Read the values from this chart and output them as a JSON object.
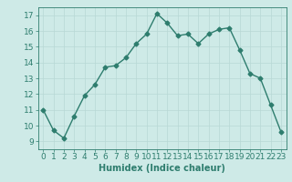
{
  "x": [
    0,
    1,
    2,
    3,
    4,
    5,
    6,
    7,
    8,
    9,
    10,
    11,
    12,
    13,
    14,
    15,
    16,
    17,
    18,
    19,
    20,
    21,
    22,
    23
  ],
  "y": [
    11.0,
    9.7,
    9.2,
    10.6,
    11.9,
    12.6,
    13.7,
    13.8,
    14.3,
    15.2,
    15.8,
    17.1,
    16.5,
    15.7,
    15.8,
    15.2,
    15.8,
    16.1,
    16.2,
    14.8,
    13.3,
    13.0,
    11.3,
    9.6
  ],
  "xlim": [
    -0.5,
    23.5
  ],
  "ylim": [
    8.5,
    17.5
  ],
  "yticks": [
    9,
    10,
    11,
    12,
    13,
    14,
    15,
    16,
    17
  ],
  "xticks": [
    0,
    1,
    2,
    3,
    4,
    5,
    6,
    7,
    8,
    9,
    10,
    11,
    12,
    13,
    14,
    15,
    16,
    17,
    18,
    19,
    20,
    21,
    22,
    23
  ],
  "xlabel": "Humidex (Indice chaleur)",
  "line_color": "#2e7d6e",
  "marker": "D",
  "marker_size": 2.5,
  "line_width": 1.0,
  "bg_color": "#ceeae7",
  "grid_color": "#b8d8d5",
  "tick_color": "#2e7d6e",
  "label_color": "#2e7d6e",
  "xlabel_fontsize": 7,
  "tick_fontsize": 6.5
}
